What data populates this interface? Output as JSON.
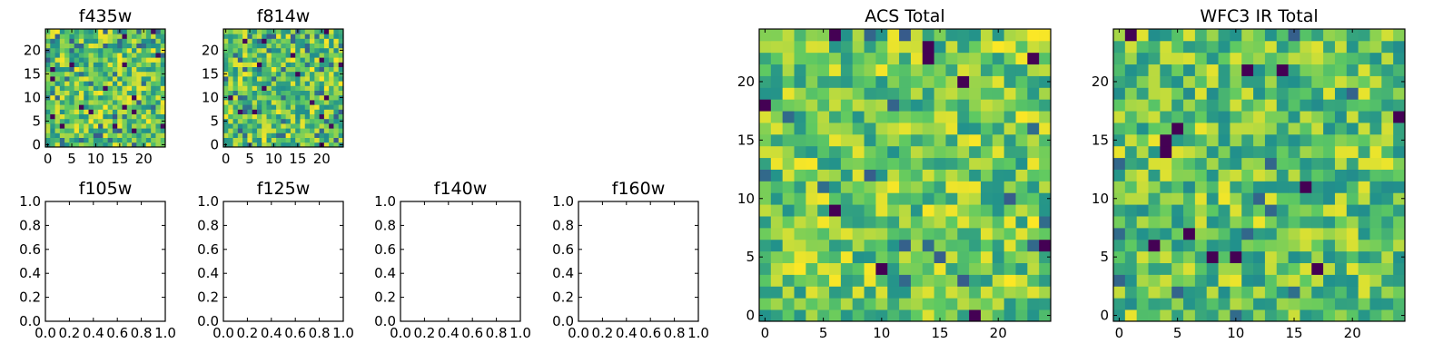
{
  "chart_data": [
    {
      "type": "heatmap",
      "title": "f435w",
      "grid_size": [
        25,
        25
      ],
      "xlim": [
        -0.5,
        24.5
      ],
      "ylim": [
        -0.5,
        24.5
      ],
      "xticks": [
        0,
        5,
        10,
        15,
        20
      ],
      "yticks": [
        0,
        5,
        10,
        15,
        20
      ],
      "xtick_labels": [
        "0",
        "5",
        "10",
        "15",
        "20"
      ],
      "ytick_labels": [
        "0",
        "5",
        "10",
        "15",
        "20"
      ],
      "value_range": [
        0,
        1
      ],
      "seed": 11,
      "palette": "noisy"
    },
    {
      "type": "heatmap",
      "title": "f814w",
      "grid_size": [
        25,
        25
      ],
      "xlim": [
        -0.5,
        24.5
      ],
      "ylim": [
        -0.5,
        24.5
      ],
      "xticks": [
        0,
        5,
        10,
        15,
        20
      ],
      "yticks": [
        0,
        5,
        10,
        15,
        20
      ],
      "xtick_labels": [
        "0",
        "5",
        "10",
        "15",
        "20"
      ],
      "ytick_labels": [
        "0",
        "5",
        "10",
        "15",
        "20"
      ],
      "value_range": [
        0,
        1
      ],
      "seed": 27,
      "palette": "noisy"
    },
    {
      "type": "heatmap",
      "title": "f105w",
      "xlim": [
        0.0,
        1.0
      ],
      "ylim": [
        0.0,
        1.0
      ],
      "xtick_labels": [
        "0.0",
        "0.2",
        "0.4",
        "0.6",
        "0.8",
        "1.0"
      ],
      "ytick_labels": [
        "0.0",
        "0.2",
        "0.4",
        "0.6",
        "0.8",
        "1.0"
      ],
      "empty": true
    },
    {
      "type": "heatmap",
      "title": "f125w",
      "xlim": [
        0.0,
        1.0
      ],
      "ylim": [
        0.0,
        1.0
      ],
      "xtick_labels": [
        "0.0",
        "0.2",
        "0.4",
        "0.6",
        "0.8",
        "1.0"
      ],
      "ytick_labels": [
        "0.0",
        "0.2",
        "0.4",
        "0.6",
        "0.8",
        "1.0"
      ],
      "empty": true
    },
    {
      "type": "heatmap",
      "title": "f140w",
      "xlim": [
        0.0,
        1.0
      ],
      "ylim": [
        0.0,
        1.0
      ],
      "xtick_labels": [
        "0.0",
        "0.2",
        "0.4",
        "0.6",
        "0.8",
        "1.0"
      ],
      "ytick_labels": [
        "0.0",
        "0.2",
        "0.4",
        "0.6",
        "0.8",
        "1.0"
      ],
      "empty": true
    },
    {
      "type": "heatmap",
      "title": "f160w",
      "xlim": [
        0.0,
        1.0
      ],
      "ylim": [
        0.0,
        1.0
      ],
      "xtick_labels": [
        "0.0",
        "0.2",
        "0.4",
        "0.6",
        "0.8",
        "1.0"
      ],
      "ytick_labels": [
        "0.0",
        "0.2",
        "0.4",
        "0.6",
        "0.8",
        "1.0"
      ],
      "empty": true
    },
    {
      "type": "heatmap",
      "title": "ACS Total",
      "grid_size": [
        25,
        25
      ],
      "xlim": [
        -0.5,
        24.5
      ],
      "ylim": [
        -0.5,
        24.5
      ],
      "xticks": [
        0,
        5,
        10,
        15,
        20
      ],
      "yticks": [
        0,
        5,
        10,
        15,
        20
      ],
      "xtick_labels": [
        "0",
        "5",
        "10",
        "15",
        "20"
      ],
      "ytick_labels": [
        "0",
        "5",
        "10",
        "15",
        "20"
      ],
      "value_range": [
        0,
        1
      ],
      "seed": 53,
      "palette": "bright"
    },
    {
      "type": "heatmap",
      "title": "WFC3 IR Total",
      "grid_size": [
        25,
        25
      ],
      "xlim": [
        -0.5,
        24.5
      ],
      "ylim": [
        -0.5,
        24.5
      ],
      "xticks": [
        0,
        5,
        10,
        15,
        20
      ],
      "yticks": [
        0,
        5,
        10,
        15,
        20
      ],
      "xtick_labels": [
        "0",
        "5",
        "10",
        "15",
        "20"
      ],
      "ytick_labels": [
        "0",
        "5",
        "10",
        "15",
        "20"
      ],
      "value_range": [
        0,
        1
      ],
      "seed": 89,
      "palette": "mid"
    }
  ],
  "colormap": [
    "#440154",
    "#3b528b",
    "#21918c",
    "#5ec962",
    "#fde725"
  ]
}
